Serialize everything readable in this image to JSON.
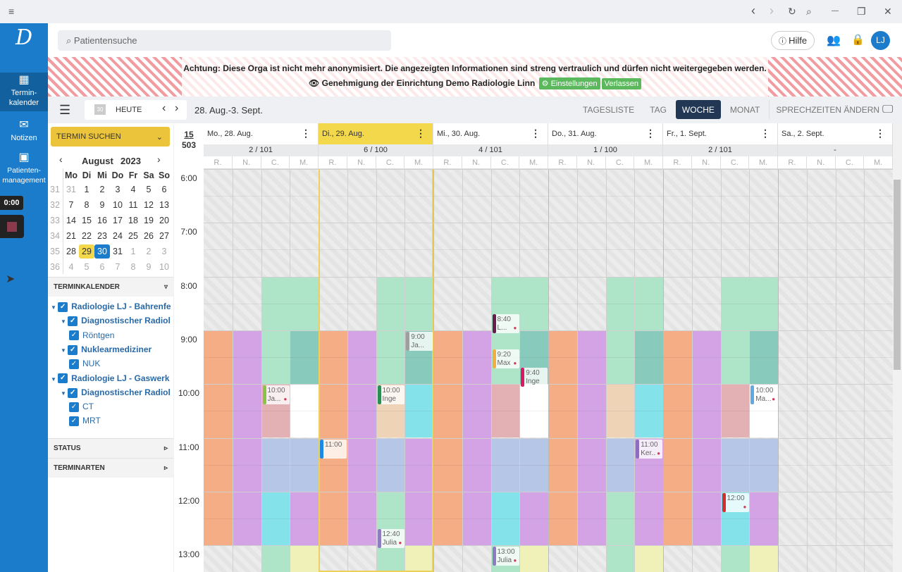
{
  "titlebar": {
    "menu": "≡",
    "back": "‹",
    "forward": "›",
    "reload": "↻",
    "search": "⌕",
    "minimize": "—",
    "maximize": "❐",
    "close": "✕"
  },
  "nav": {
    "logo": "D",
    "items": [
      {
        "icon": "▦",
        "label": "Termin-\nkalender"
      },
      {
        "icon": "✉",
        "label": "Notizen"
      },
      {
        "icon": "▣",
        "label": "Patienten-\nmanagement"
      }
    ],
    "timer": "0:00"
  },
  "header": {
    "search_placeholder": "Patientensuche",
    "help": "Hilfe",
    "avatar": "LJ"
  },
  "banner": {
    "warning": "Achtung: Diese Orga ist nicht mehr anonymisiert. Die angezeigten Informationen sind streng vertraulich und dürfen nicht weitergegeben werden.",
    "approval": "Genehmigung der Einrichtung Demo Radiologie Linn",
    "settings": "Einstellungen",
    "leave": "Verlassen"
  },
  "toolbar": {
    "today_icon": "30",
    "today": "HEUTE",
    "range": "28. Aug.-3. Sept.",
    "views": [
      "TAGESLISTE",
      "TAG",
      "WOCHE",
      "MONAT"
    ],
    "active_view": "WOCHE",
    "change_hours": "SPRECHZEITEN ÄNDERN"
  },
  "left": {
    "search_btn": "TERMIN SUCHEN",
    "month": "August",
    "year": "2023",
    "weekdays": [
      "Mo",
      "Di",
      "Mi",
      "Do",
      "Fr",
      "Sa",
      "So"
    ],
    "weeks": [
      {
        "kw": "31",
        "days": [
          "31",
          "1",
          "2",
          "3",
          "4",
          "5",
          "6"
        ]
      },
      {
        "kw": "32",
        "days": [
          "7",
          "8",
          "9",
          "10",
          "11",
          "12",
          "13"
        ]
      },
      {
        "kw": "33",
        "days": [
          "14",
          "15",
          "16",
          "17",
          "18",
          "19",
          "20"
        ]
      },
      {
        "kw": "34",
        "days": [
          "21",
          "22",
          "23",
          "24",
          "25",
          "26",
          "27"
        ]
      },
      {
        "kw": "35",
        "days": [
          "28",
          "29",
          "30",
          "31",
          "1",
          "2",
          "3"
        ]
      },
      {
        "kw": "36",
        "days": [
          "4",
          "5",
          "6",
          "7",
          "8",
          "9",
          "10"
        ]
      }
    ],
    "terminkalender": "TERMINKALENDER",
    "tree": [
      {
        "label": "Radiologie LJ - Bahrenfeld",
        "level": 0,
        "bold": true
      },
      {
        "label": "Diagnostischer Radiologe",
        "level": 1,
        "bold": true
      },
      {
        "label": "Röntgen",
        "level": 2,
        "bold": false
      },
      {
        "label": "Nuklearmediziner",
        "level": 1,
        "bold": true
      },
      {
        "label": "NUK",
        "level": 2,
        "bold": false
      },
      {
        "label": "Radiologie LJ - Gaswerk",
        "level": 0,
        "bold": true
      },
      {
        "label": "Diagnostischer Radiologe",
        "level": 1,
        "bold": true
      },
      {
        "label": "CT",
        "level": 2,
        "bold": false
      },
      {
        "label": "MRT",
        "level": 2,
        "bold": false
      }
    ],
    "status": "STATUS",
    "terminarten": "TERMINARTEN"
  },
  "calendar": {
    "kw": "15",
    "total": "503",
    "days": [
      {
        "label": "Mo., 28. Aug.",
        "count": "2 / 101"
      },
      {
        "label": "Di., 29. Aug.",
        "count": "6 / 100",
        "today": true
      },
      {
        "label": "Mi., 30. Aug.",
        "count": "4 / 101"
      },
      {
        "label": "Do., 31. Aug.",
        "count": "1 / 100"
      },
      {
        "label": "Fr., 1. Sept.",
        "count": "2 / 101"
      },
      {
        "label": "Sa., 2. Sept.",
        "count": "-"
      }
    ],
    "subcols": [
      "R.",
      "N.",
      "C.",
      "M."
    ],
    "hours": [
      "6:00",
      "7:00",
      "8:00",
      "9:00",
      "10:00",
      "11:00",
      "12:00",
      "13:00"
    ],
    "colors": {
      "orange": "#f4ad84",
      "purple": "#d3a3e6",
      "green": "#aee5c8",
      "teal": "#88cabb",
      "pink": "#e3b0b4",
      "white": "#ffffff",
      "peach": "#efd3b7",
      "cyan": "#84e3ea",
      "lav": "#b6c6e6",
      "yellow": "#eff1b9"
    },
    "patternA": [
      [
        [
          "orange",
          9,
          13
        ]
      ],
      [
        [
          "purple",
          9,
          13
        ]
      ],
      [
        [
          "green",
          8,
          10
        ],
        [
          "pink",
          10,
          11
        ],
        [
          "lav",
          11,
          12
        ],
        [
          "cyan",
          12,
          13
        ],
        [
          "green",
          13,
          14
        ]
      ],
      [
        [
          "green",
          8,
          9
        ],
        [
          "teal",
          9,
          10
        ],
        [
          "white",
          10,
          11
        ],
        [
          "lav",
          11,
          12
        ],
        [
          "purple",
          12,
          13
        ],
        [
          "yellow",
          13,
          14
        ]
      ]
    ],
    "patternB": [
      [
        [
          "orange",
          9,
          13
        ]
      ],
      [
        [
          "purple",
          9,
          13
        ]
      ],
      [
        [
          "green",
          8,
          10
        ],
        [
          "peach",
          10,
          11
        ],
        [
          "lav",
          11,
          12
        ],
        [
          "green",
          12,
          14
        ]
      ],
      [
        [
          "green",
          8,
          9
        ],
        [
          "teal",
          9,
          10
        ],
        [
          "cyan",
          10,
          11
        ],
        [
          "purple",
          11,
          13
        ],
        [
          "yellow",
          13,
          14
        ]
      ]
    ],
    "day_patterns": [
      "A",
      "B",
      "A",
      "B",
      "A",
      ""
    ],
    "appointments": [
      {
        "col": 2,
        "time": "10:00",
        "start": 10.0,
        "bar": "#8bc34a",
        "person": true,
        "name": "Ja..."
      },
      {
        "col": 6,
        "time": "10:00",
        "start": 10.0,
        "bar": "#2e8b57",
        "person": false,
        "name": "Inge"
      },
      {
        "col": 7,
        "time": "9:00",
        "start": 9.0,
        "bar": "#9e9e9e",
        "person": false,
        "name": "Ja..."
      },
      {
        "col": 4,
        "time": "11:00",
        "start": 11.0,
        "bar": "#1e88e5",
        "person": false,
        "name": ""
      },
      {
        "col": 6,
        "time": "12:40",
        "start": 12.67,
        "bar": "#8e7cc3",
        "person": true,
        "name": "Julia"
      },
      {
        "col": 10,
        "time": "8:40",
        "start": 8.67,
        "bar": "#6a1b4d",
        "person": true,
        "name": "L..."
      },
      {
        "col": 10,
        "time": "9:20",
        "start": 9.33,
        "bar": "#f0b040",
        "person": true,
        "name": "Max"
      },
      {
        "col": 11,
        "time": "9:40",
        "start": 9.67,
        "bar": "#d81b60",
        "person": false,
        "name": "Inge"
      },
      {
        "col": 10,
        "time": "13:00",
        "start": 13.0,
        "bar": "#8e7cc3",
        "person": true,
        "name": "Julia"
      },
      {
        "col": 15,
        "time": "11:00",
        "start": 11.0,
        "bar": "#8e6cc0",
        "person": true,
        "name": "Ker..."
      },
      {
        "col": 18,
        "time": "12:00",
        "start": 12.0,
        "bar": "#d32f2f",
        "person": true,
        "name": ""
      },
      {
        "col": 19,
        "time": "10:00",
        "start": 10.0,
        "bar": "#64a8e0",
        "person": true,
        "name": "Ma..."
      }
    ]
  }
}
